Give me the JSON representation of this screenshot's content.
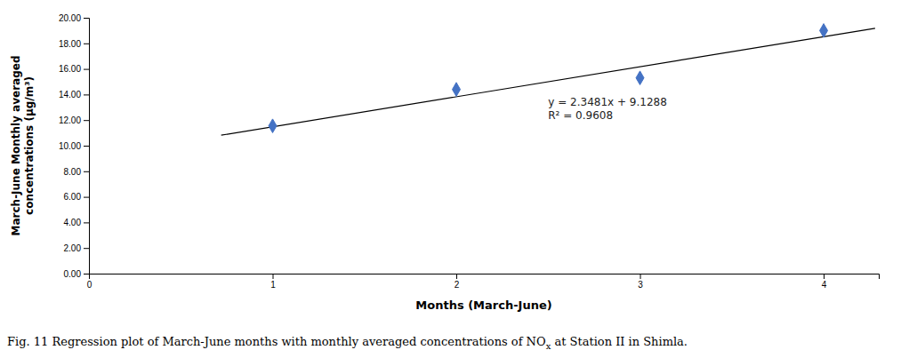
{
  "chart_data": {
    "type": "scatter",
    "xlabel": "Months (March-June)",
    "ylabel": "March-June Monthly averaged\nconcentrations (µg/m³)",
    "xlim": [
      0,
      4.3
    ],
    "ylim": [
      0.0,
      20.0
    ],
    "xticks": [
      0,
      1,
      2,
      3,
      4
    ],
    "yticks": [
      {
        "value": 0.0,
        "label": "0.00"
      },
      {
        "value": 2.0,
        "label": "2.00"
      },
      {
        "value": 4.0,
        "label": "4.00"
      },
      {
        "value": 6.0,
        "label": "6.00"
      },
      {
        "value": 8.0,
        "label": "8.00"
      },
      {
        "value": 10.0,
        "label": "10.00"
      },
      {
        "value": 12.0,
        "label": "12.00"
      },
      {
        "value": 14.0,
        "label": "14.00"
      },
      {
        "value": 16.0,
        "label": "16.00"
      },
      {
        "value": 18.0,
        "label": "18.00"
      },
      {
        "value": 20.0,
        "label": "20.00"
      }
    ],
    "grid": false,
    "series": [
      {
        "type": "scatter",
        "marker": "diamond",
        "color": "#4472C4",
        "x": [
          1,
          2,
          3,
          4
        ],
        "values": [
          11.55,
          14.4,
          15.3,
          19.0
        ]
      },
      {
        "type": "line",
        "line_style": "solid",
        "color": "#000000",
        "x": [
          0.72,
          4.28
        ],
        "values": [
          10.819432,
          19.178668
        ]
      }
    ],
    "annotations": [
      {
        "text": "y = 2.3481x + 9.1288\nR² = 0.9608",
        "x": 2.5,
        "y": 11.8
      }
    ],
    "caption": [
      "Fig. 11 Regression plot of March-June months with monthly averaged concentrations of NO",
      "x",
      " at Station II in Shimla."
    ]
  }
}
